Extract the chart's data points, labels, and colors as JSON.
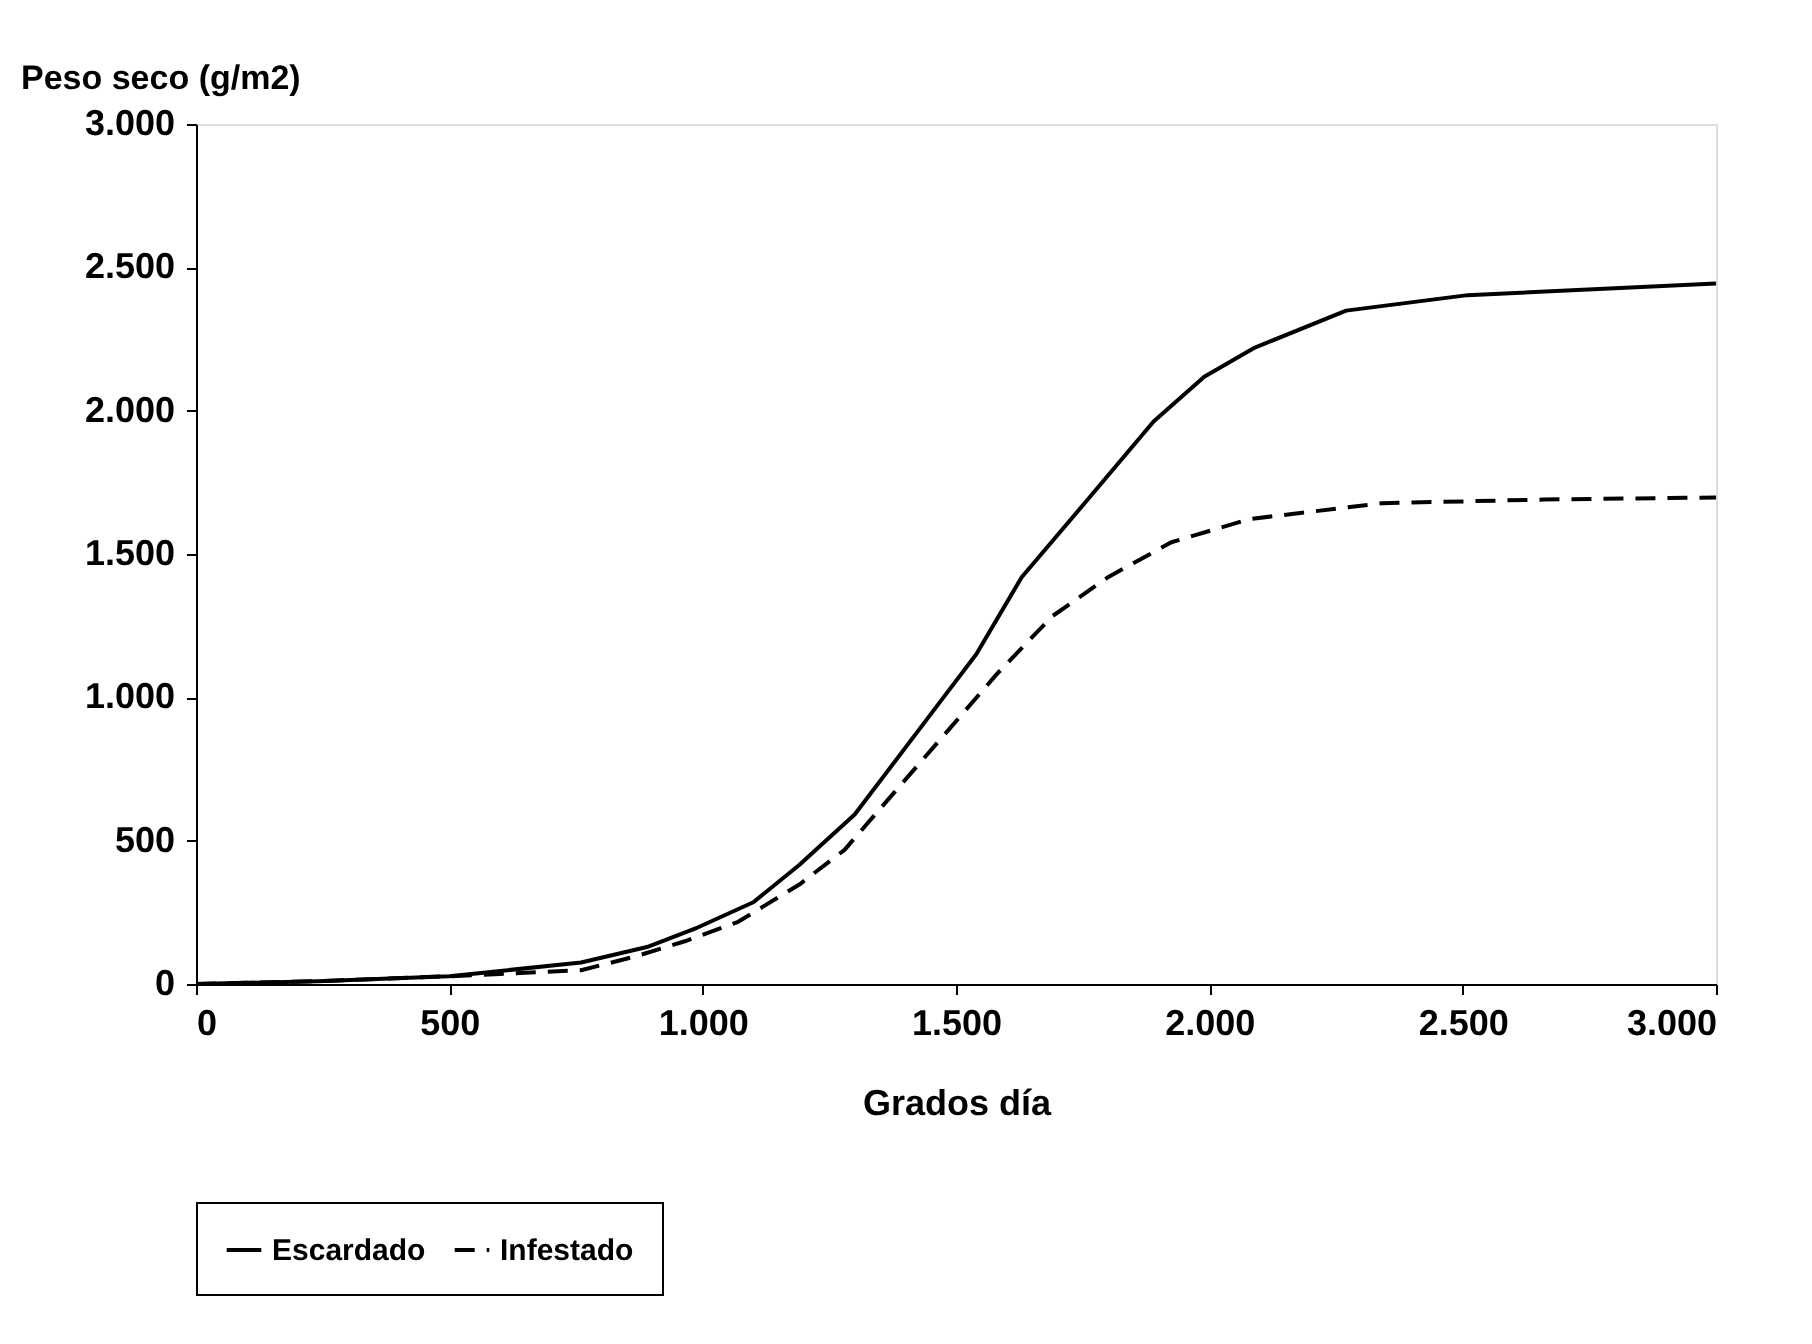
{
  "chart_data": {
    "type": "line",
    "xlabel": "Grados día",
    "ylabel": "Peso seco (g/m2)",
    "xlim": [
      0,
      3000
    ],
    "ylim": [
      0,
      3000
    ],
    "xticks": [
      0,
      500,
      {
        "value": 1000,
        "label": "1.000"
      },
      {
        "value": 1500,
        "label": "1.500"
      },
      {
        "value": 2000,
        "label": "2.000"
      },
      {
        "value": 2500,
        "label": "2.500"
      },
      {
        "value": 3000,
        "label": "3.000"
      }
    ],
    "yticks": [
      0,
      500,
      {
        "value": 1000,
        "label": "1.000"
      },
      {
        "value": 1500,
        "label": "1.500"
      },
      {
        "value": 2000,
        "label": "2.000"
      },
      {
        "value": 2500,
        "label": "2.500"
      },
      {
        "value": 3000,
        "label": "3.000"
      }
    ],
    "grid": false,
    "legend": "bottom",
    "marker": "none",
    "series": [
      {
        "name": "Escardado",
        "color": "#000000",
        "line_style": "solid",
        "x": [
          0,
          240,
          500,
          760,
          890,
          990,
          1100,
          1190,
          1300,
          1460,
          1540,
          1630,
          1760,
          1890,
          1990,
          2090,
          2270,
          2510,
          3000
        ],
        "values": [
          0,
          10,
          27,
          75,
          129,
          197,
          285,
          414,
          591,
          964,
          1150,
          1420,
          1690,
          1962,
          2118,
          2220,
          2349,
          2403,
          2444
        ]
      },
      {
        "name": "Infestado",
        "color": "#000000",
        "line_style": "dashed",
        "x": [
          0,
          240,
          500,
          600,
          760,
          865,
          965,
          1070,
          1190,
          1280,
          1380,
          1490,
          1580,
          1690,
          1800,
          1925,
          2080,
          2340,
          2660,
          3000
        ],
        "values": [
          0,
          10,
          27,
          35,
          48,
          95,
          149,
          217,
          346,
          468,
          672,
          896,
          1080,
          1283,
          1419,
          1541,
          1622,
          1677,
          1690,
          1697
        ]
      }
    ]
  }
}
